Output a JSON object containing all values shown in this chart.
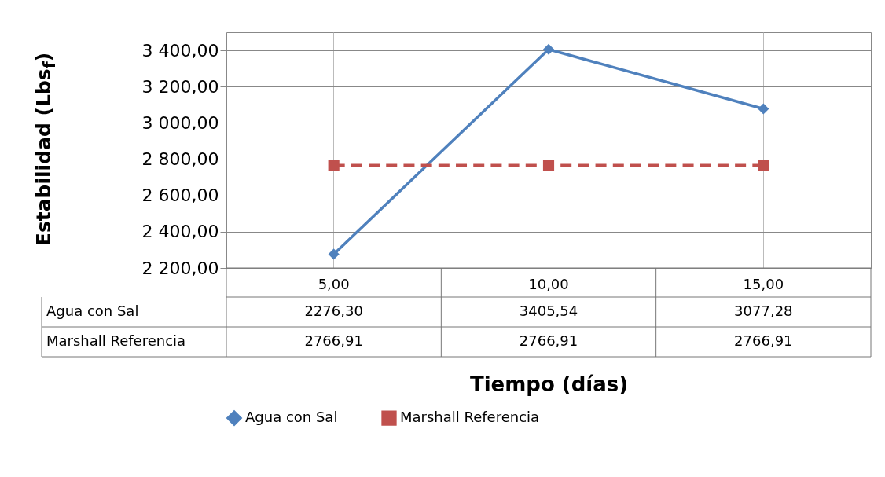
{
  "chart_data": {
    "type": "line",
    "xlabel": "Tiempo (días)",
    "ylabel": "Estabilidad (Lbs$_{f}$)",
    "categories": [
      "5,00",
      "10,00",
      "15,00"
    ],
    "ylim": [
      2200,
      3500
    ],
    "yticks": [
      {
        "value": 2200,
        "label": "2 200,00"
      },
      {
        "value": 2400,
        "label": "2 400,00"
      },
      {
        "value": 2600,
        "label": "2 600,00"
      },
      {
        "value": 2800,
        "label": "2 800,00"
      },
      {
        "value": 3000,
        "label": "3 000,00"
      },
      {
        "value": 3200,
        "label": "3 200,00"
      },
      {
        "value": 3400,
        "label": "3 400,00"
      }
    ],
    "grid": true,
    "legend": "bottom",
    "series": [
      {
        "name": "Agua con Sal",
        "color": "#4f81bd",
        "marker": "diamond",
        "line_style": "solid",
        "values": [
          2276.3,
          3405.54,
          3077.28
        ],
        "value_labels": [
          "2276,30",
          "3405,54",
          "3077,28"
        ]
      },
      {
        "name": "Marshall Referencia",
        "color": "#c0504d",
        "marker": "square",
        "line_style": "dashed",
        "values": [
          2766.91,
          2766.91,
          2766.91
        ],
        "value_labels": [
          "2766,91",
          "2766,91",
          "2766,91"
        ]
      }
    ]
  }
}
